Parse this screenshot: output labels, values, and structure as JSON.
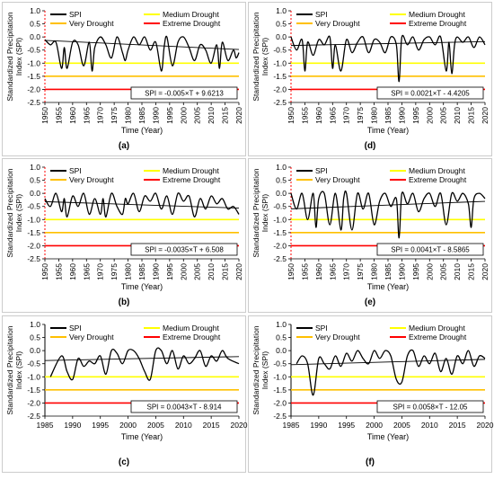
{
  "figure": {
    "legend_labels": {
      "spi": "SPI",
      "medium": "Medium Drought",
      "very": "Very Drought",
      "extreme": "Extreme Drought"
    },
    "colors": {
      "spi": "#000000",
      "medium": "#ffff00",
      "very": "#ffc000",
      "extreme": "#ff0000",
      "trend": "#000000"
    },
    "thresholds": {
      "medium": -1.0,
      "very": -1.5,
      "extreme": -2.0
    }
  },
  "chart_data": [
    {
      "panel_label": "(a)",
      "type": "line",
      "ylabel": "Standardized Precipitation Index (SPI)",
      "xlabel": "Time (Year)",
      "xlim": [
        1950,
        2020
      ],
      "x_ticks": [
        1950,
        1955,
        1960,
        1965,
        1970,
        1975,
        1980,
        1985,
        1990,
        1995,
        2000,
        2005,
        2010,
        2015,
        2020
      ],
      "ylim": [
        -2.5,
        1.0
      ],
      "y_ticks": [
        1.0,
        0.5,
        0.0,
        -0.5,
        -1.0,
        -1.5,
        -2.0,
        -2.5
      ],
      "equation": "SPI = -0.005×T + 9.6213",
      "trend": {
        "slope": -0.005,
        "intercept": 9.6213
      },
      "series": [
        {
          "name": "SPI",
          "x": [
            1950,
            1952,
            1954,
            1956,
            1957,
            1958,
            1960,
            1962,
            1964,
            1966,
            1967,
            1968,
            1970,
            1972,
            1974,
            1976,
            1978,
            1979,
            1980,
            1982,
            1984,
            1986,
            1988,
            1990,
            1992,
            1993,
            1994,
            1996,
            1998,
            2000,
            2002,
            2004,
            2006,
            2008,
            2010,
            2012,
            2013,
            2014,
            2016,
            2018,
            2019,
            2020
          ],
          "y": [
            -0.1,
            -0.3,
            -0.2,
            -1.2,
            -0.4,
            -1.2,
            -0.2,
            -0.3,
            -1.1,
            -0.2,
            -1.3,
            -0.4,
            0.0,
            -0.3,
            -0.8,
            0.0,
            -0.6,
            -0.9,
            -0.5,
            0.0,
            -0.3,
            0.0,
            -0.5,
            -0.2,
            -1.3,
            -0.4,
            0.0,
            -1.1,
            -0.2,
            0.0,
            -0.4,
            -0.9,
            -0.3,
            -0.5,
            -1.0,
            -0.3,
            -1.2,
            -0.2,
            -0.9,
            -0.5,
            -0.8,
            -0.6
          ]
        }
      ]
    },
    {
      "panel_label": "(d)",
      "type": "line",
      "ylabel": "Standardized Precipitation Index (SPI)",
      "xlabel": "Time (Year)",
      "xlim": [
        1950,
        2020
      ],
      "x_ticks": [
        1950,
        1955,
        1960,
        1965,
        1970,
        1975,
        1980,
        1985,
        1990,
        1995,
        2000,
        2005,
        2010,
        2015,
        2020
      ],
      "ylim": [
        -2.5,
        1.0
      ],
      "y_ticks": [
        1.0,
        0.5,
        0.0,
        -0.5,
        -1.0,
        -1.5,
        -2.0,
        -2.5
      ],
      "equation": "SPI = 0.0021×T - 4.4205",
      "trend": {
        "slope": 0.0021,
        "intercept": -4.4205
      },
      "series": [
        {
          "name": "SPI",
          "x": [
            1950,
            1952,
            1954,
            1955,
            1956,
            1958,
            1960,
            1962,
            1964,
            1965,
            1966,
            1968,
            1970,
            1972,
            1974,
            1976,
            1978,
            1980,
            1982,
            1984,
            1986,
            1988,
            1989,
            1990,
            1992,
            1994,
            1996,
            1998,
            2000,
            2002,
            2004,
            2006,
            2007,
            2008,
            2009,
            2010,
            2012,
            2014,
            2016,
            2018,
            2020
          ],
          "y": [
            0.0,
            -0.5,
            -0.1,
            -1.3,
            -0.2,
            -0.7,
            -0.1,
            -0.3,
            0.0,
            -1.2,
            -0.3,
            -1.3,
            -0.1,
            -0.6,
            -0.2,
            0.0,
            -0.6,
            -0.1,
            -0.2,
            -0.6,
            0.0,
            -0.3,
            -1.7,
            0.0,
            -0.3,
            0.0,
            -0.5,
            -0.1,
            0.0,
            -0.3,
            0.0,
            -1.3,
            -0.2,
            -1.4,
            -0.3,
            0.0,
            -0.2,
            0.0,
            -0.4,
            0.0,
            -0.3
          ]
        }
      ]
    },
    {
      "panel_label": "(b)",
      "type": "line",
      "ylabel": "Standardized Precipitation Index (SPI)",
      "xlabel": "Time (Year)",
      "xlim": [
        1950,
        2020
      ],
      "x_ticks": [
        1950,
        1955,
        1960,
        1965,
        1970,
        1975,
        1980,
        1985,
        1990,
        1995,
        2000,
        2005,
        2010,
        2015,
        2020
      ],
      "ylim": [
        -2.5,
        1.0
      ],
      "y_ticks": [
        1.0,
        0.5,
        0.0,
        -0.5,
        -1.0,
        -1.5,
        -2.0,
        -2.5
      ],
      "equation": "SPI = -0.0035×T + 6.508",
      "trend": {
        "slope": -0.0035,
        "intercept": 6.508
      },
      "series": [
        {
          "name": "SPI",
          "x": [
            1950,
            1952,
            1954,
            1956,
            1957,
            1958,
            1960,
            1962,
            1964,
            1966,
            1968,
            1970,
            1971,
            1972,
            1974,
            1976,
            1978,
            1979,
            1980,
            1982,
            1984,
            1986,
            1988,
            1990,
            1992,
            1994,
            1996,
            1998,
            2000,
            2002,
            2004,
            2006,
            2008,
            2010,
            2012,
            2014,
            2016,
            2018,
            2020
          ],
          "y": [
            -0.2,
            -0.5,
            0.0,
            -0.7,
            -0.2,
            -0.9,
            -0.1,
            -0.5,
            0.0,
            -0.8,
            -0.2,
            -0.8,
            -0.2,
            -0.9,
            0.0,
            -0.5,
            -0.8,
            -0.2,
            -0.4,
            0.0,
            -0.7,
            -0.1,
            -0.3,
            0.0,
            -0.6,
            -0.1,
            -0.8,
            0.0,
            -0.3,
            -0.1,
            -0.9,
            -0.2,
            -0.6,
            -0.1,
            -0.4,
            -0.2,
            -0.6,
            -0.5,
            -0.8
          ]
        }
      ]
    },
    {
      "panel_label": "(e)",
      "type": "line",
      "ylabel": "Standardized Precipitation Index (SPI)",
      "xlabel": "Time (Year)",
      "xlim": [
        1950,
        2020
      ],
      "x_ticks": [
        1950,
        1955,
        1960,
        1965,
        1970,
        1975,
        1980,
        1985,
        1990,
        1995,
        2000,
        2005,
        2010,
        2015,
        2020
      ],
      "ylim": [
        -2.5,
        1.0
      ],
      "y_ticks": [
        1.0,
        0.5,
        0.0,
        -0.5,
        -1.0,
        -1.5,
        -2.0,
        -2.5
      ],
      "equation": "SPI = 0.0041×T - 8.5865",
      "trend": {
        "slope": 0.0041,
        "intercept": -8.5865
      },
      "series": [
        {
          "name": "SPI",
          "x": [
            1950,
            1952,
            1954,
            1956,
            1958,
            1959,
            1960,
            1962,
            1964,
            1966,
            1968,
            1969,
            1970,
            1972,
            1974,
            1976,
            1978,
            1980,
            1982,
            1984,
            1986,
            1988,
            1989,
            1990,
            1992,
            1994,
            1996,
            1998,
            2000,
            2002,
            2004,
            2006,
            2008,
            2010,
            2012,
            2014,
            2015,
            2016,
            2018,
            2020
          ],
          "y": [
            0.0,
            -0.6,
            0.0,
            -1.0,
            0.0,
            -1.3,
            -0.2,
            0.0,
            -1.2,
            0.0,
            -1.4,
            -0.2,
            0.0,
            -1.4,
            0.0,
            -0.6,
            0.0,
            -1.2,
            -0.3,
            0.0,
            -0.5,
            -0.2,
            -1.7,
            0.0,
            -0.4,
            0.0,
            -0.7,
            -0.2,
            0.0,
            -0.5,
            0.0,
            -1.2,
            0.0,
            -0.3,
            0.0,
            -0.4,
            -1.3,
            -0.2,
            0.0,
            -0.2
          ]
        }
      ]
    },
    {
      "panel_label": "(c)",
      "type": "line",
      "ylabel": "Standardized Precipitation Index (SPI)",
      "xlabel": "Time (Year)",
      "xlim": [
        1985,
        2020
      ],
      "x_ticks": [
        1985,
        1990,
        1995,
        2000,
        2005,
        2010,
        2015,
        2020
      ],
      "ylim": [
        -2.5,
        1.0
      ],
      "y_ticks": [
        1.0,
        0.5,
        0.0,
        -0.5,
        -1.0,
        -1.5,
        -2.0,
        -2.5
      ],
      "equation": "SPI = 0.0043×T - 8.914",
      "trend": {
        "slope": 0.0043,
        "intercept": -8.914
      },
      "series": [
        {
          "name": "SPI",
          "x": [
            1986,
            1988,
            1989,
            1990,
            1991,
            1992,
            1993,
            1994,
            1995,
            1996,
            1997,
            1998,
            1999,
            2000,
            2001,
            2002,
            2003,
            2004,
            2005,
            2006,
            2007,
            2008,
            2009,
            2010,
            2011,
            2012,
            2013,
            2014,
            2015,
            2016,
            2017,
            2018,
            2020
          ],
          "y": [
            -1.0,
            -0.2,
            -0.8,
            -1.1,
            -0.3,
            -0.6,
            -0.4,
            -0.5,
            -0.2,
            -0.9,
            0.0,
            -0.1,
            -0.5,
            0.0,
            0.0,
            -0.3,
            -0.8,
            -1.1,
            0.0,
            0.0,
            -0.5,
            0.0,
            -0.7,
            -0.2,
            -0.5,
            -0.3,
            0.0,
            -0.6,
            -0.2,
            -0.4,
            0.0,
            -0.3,
            -0.5
          ]
        }
      ]
    },
    {
      "panel_label": "(f)",
      "type": "line",
      "ylabel": "Standardized Precipitation Index (SPI)",
      "xlabel": "Time (Year)",
      "xlim": [
        1985,
        2020
      ],
      "x_ticks": [
        1985,
        1990,
        1995,
        2000,
        2005,
        2010,
        2015,
        2020
      ],
      "ylim": [
        -2.5,
        1.0
      ],
      "y_ticks": [
        1.0,
        0.5,
        0.0,
        -0.5,
        -1.0,
        -1.5,
        -2.0,
        -2.5
      ],
      "equation": "SPI = 0.0058×T - 12.05",
      "trend": {
        "slope": 0.0058,
        "intercept": -12.05
      },
      "series": [
        {
          "name": "SPI",
          "x": [
            1986,
            1987,
            1988,
            1989,
            1990,
            1991,
            1992,
            1993,
            1994,
            1995,
            1996,
            1997,
            1998,
            1999,
            2000,
            2001,
            2002,
            2003,
            2004,
            2005,
            2006,
            2007,
            2008,
            2009,
            2010,
            2011,
            2012,
            2013,
            2014,
            2015,
            2016,
            2017,
            2018,
            2019,
            2020
          ],
          "y": [
            -0.5,
            -0.2,
            -0.5,
            -1.7,
            -0.3,
            -0.5,
            -0.7,
            -0.2,
            -0.6,
            -0.1,
            -0.4,
            0.0,
            -0.3,
            -0.5,
            0.0,
            -0.3,
            0.0,
            -0.2,
            -1.1,
            -1.2,
            -0.2,
            0.0,
            -0.6,
            -0.2,
            -0.5,
            -0.1,
            -0.8,
            -0.3,
            -0.9,
            -0.2,
            -0.5,
            0.0,
            -0.6,
            -0.2,
            -0.3
          ]
        }
      ]
    }
  ]
}
